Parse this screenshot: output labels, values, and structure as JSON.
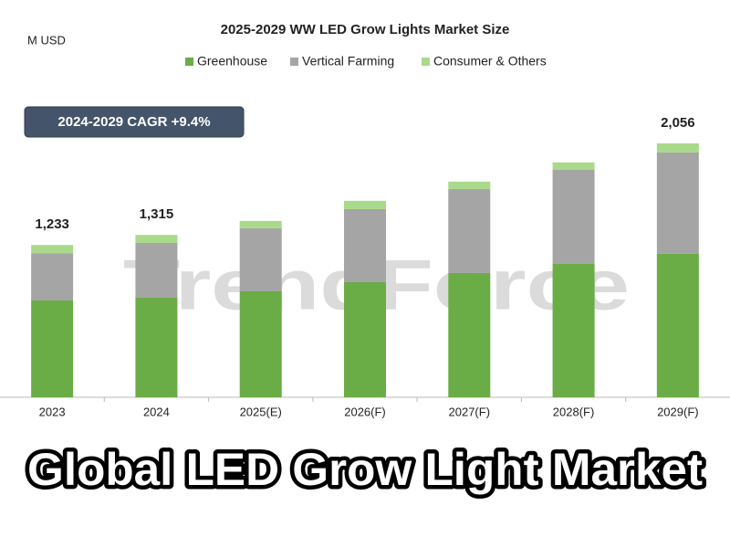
{
  "chart_data": {
    "type": "stacked-bar",
    "title": "2025-2029 WW LED Grow Lights Market Size",
    "unit": "M USD",
    "categories": [
      "2023",
      "2024",
      "2025(E)",
      "2026(F)",
      "2027(F)",
      "2028(F)",
      "2029(F)"
    ],
    "series": [
      {
        "name": "Greenhouse",
        "color": "#6aac46",
        "values": [
          784,
          806,
          858,
          932,
          1006,
          1080,
          1162
        ]
      },
      {
        "name": "Vertical Farming",
        "color": "#a5a5a5",
        "values": [
          383,
          444,
          511,
          592,
          681,
          762,
          821
        ]
      },
      {
        "name": "Consumer & Others",
        "color": "#a9d98a",
        "values": [
          66,
          65,
          59,
          67,
          59,
          60,
          73
        ]
      }
    ],
    "totals": [
      1233,
      1315,
      null,
      null,
      null,
      null,
      2056
    ],
    "total_labels": [
      "1,233",
      "1,315",
      null,
      null,
      null,
      null,
      "2,056"
    ],
    "annotation": "2024-2029 CAGR +9.4%",
    "watermark": "TrendForce",
    "caption": "Global LED Grow Light Market",
    "legend": "top"
  }
}
